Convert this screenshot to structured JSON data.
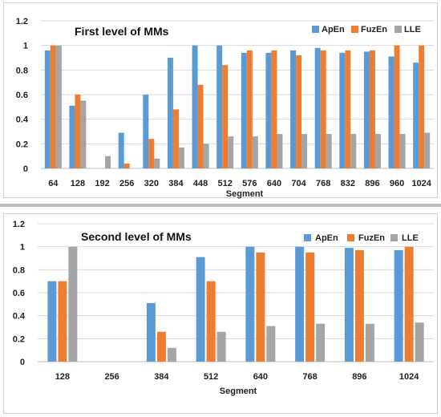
{
  "chart_data": [
    {
      "type": "bar",
      "title": "First level of MMs",
      "xlabel": "Segment",
      "ylabel": "",
      "ylim": [
        0,
        1.2
      ],
      "yticks": [
        "0",
        "0.2",
        "0.4",
        "0.6",
        "0.8",
        "1",
        "1.2"
      ],
      "categories": [
        "64",
        "128",
        "192",
        "256",
        "320",
        "384",
        "448",
        "512",
        "576",
        "640",
        "704",
        "768",
        "832",
        "896",
        "960",
        "1024"
      ],
      "series": [
        {
          "name": "ApEn",
          "color": "#5b9bd5",
          "values": [
            0.96,
            0.51,
            0,
            0.29,
            0.6,
            0.9,
            1.0,
            1.0,
            0.94,
            0.94,
            0.96,
            0.98,
            0.94,
            0.95,
            0.91,
            0.86
          ]
        },
        {
          "name": "FuzEn",
          "color": "#ed7d31",
          "values": [
            1.0,
            0.6,
            0,
            0.04,
            0.24,
            0.48,
            0.68,
            0.84,
            0.96,
            0.96,
            0.92,
            0.96,
            0.96,
            0.96,
            1.0,
            1.0
          ]
        },
        {
          "name": "LLE",
          "color": "#a5a5a5",
          "values": [
            1.0,
            0.55,
            0.1,
            0,
            0.08,
            0.17,
            0.2,
            0.26,
            0.26,
            0.28,
            0.28,
            0.28,
            0.28,
            0.28,
            0.28,
            0.29
          ]
        }
      ],
      "legend": "top-right",
      "grid": true
    },
    {
      "type": "bar",
      "title": "Second level of MMs",
      "xlabel": "Segment",
      "ylabel": "",
      "ylim": [
        0,
        1.2
      ],
      "yticks": [
        "0",
        "0.2",
        "0.4",
        "0.6",
        "0.8",
        "1",
        "1.2"
      ],
      "categories": [
        "128",
        "256",
        "384",
        "512",
        "640",
        "768",
        "896",
        "1024"
      ],
      "series": [
        {
          "name": "ApEn",
          "color": "#5b9bd5",
          "values": [
            0.7,
            0,
            0.51,
            0.91,
            1.0,
            1.0,
            0.99,
            0.97
          ]
        },
        {
          "name": "FuzEn",
          "color": "#ed7d31",
          "values": [
            0.7,
            0,
            0.26,
            0.7,
            0.95,
            0.95,
            0.97,
            1.0
          ]
        },
        {
          "name": "LLE",
          "color": "#a5a5a5",
          "values": [
            1.0,
            0,
            0.12,
            0.26,
            0.31,
            0.33,
            0.33,
            0.34
          ]
        }
      ],
      "legend": "top-right",
      "grid": true
    }
  ]
}
